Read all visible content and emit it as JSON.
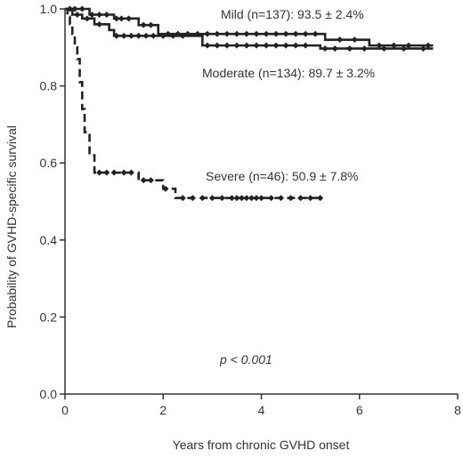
{
  "chart_data": {
    "type": "line",
    "title": "",
    "xlabel": "Years from chronic GVHD onset",
    "ylabel": "Probability of GVHD-specific survival",
    "xlim": [
      0,
      8
    ],
    "ylim": [
      0.0,
      1.0
    ],
    "x_ticks": [
      "0",
      "2",
      "4",
      "6",
      "8"
    ],
    "y_ticks": [
      "0.0",
      "0.2",
      "0.4",
      "0.6",
      "0.8",
      "1.0"
    ],
    "grid": false,
    "p_value": "p < 0.001",
    "series": [
      {
        "name": "Mild (n=137): 93.5 ± 2.4%",
        "line_style": "solid",
        "steps": [
          [
            0,
            1.0
          ],
          [
            0.5,
            0.985
          ],
          [
            1.0,
            0.975
          ],
          [
            1.5,
            0.958
          ],
          [
            1.9,
            0.935
          ],
          [
            5.2,
            0.935
          ],
          [
            5.3,
            0.92
          ],
          [
            6.1,
            0.92
          ],
          [
            6.2,
            0.905
          ],
          [
            7.5,
            0.905
          ]
        ],
        "censor_x": [
          0.1,
          0.2,
          0.35,
          0.55,
          0.7,
          0.85,
          1.05,
          1.15,
          1.3,
          1.6,
          1.75,
          2.1,
          2.3,
          2.5,
          2.7,
          2.9,
          3.1,
          3.3,
          3.5,
          3.7,
          3.9,
          4.1,
          4.3,
          4.5,
          4.7,
          4.9,
          5.1,
          5.6,
          5.9,
          6.4,
          6.7,
          7.0,
          7.4
        ]
      },
      {
        "name": "Moderate (n=134): 89.7 ± 3.2%",
        "line_style": "solid",
        "steps": [
          [
            0,
            1.0
          ],
          [
            0.15,
            0.985
          ],
          [
            0.35,
            0.975
          ],
          [
            0.6,
            0.96
          ],
          [
            0.9,
            0.945
          ],
          [
            1.0,
            0.93
          ],
          [
            2.6,
            0.93
          ],
          [
            2.8,
            0.905
          ],
          [
            5.1,
            0.905
          ],
          [
            5.2,
            0.897
          ],
          [
            7.5,
            0.897
          ]
        ],
        "censor_x": [
          0.25,
          0.45,
          0.7,
          1.05,
          1.2,
          1.35,
          1.5,
          1.65,
          1.8,
          2.0,
          2.2,
          2.4,
          2.9,
          3.1,
          3.3,
          3.5,
          3.7,
          3.9,
          4.1,
          4.3,
          4.5,
          4.7,
          4.9,
          5.3,
          5.5,
          5.8,
          6.1,
          6.5,
          6.9,
          7.3
        ]
      },
      {
        "name": "Severe (n=46): 50.9 ± 7.8%",
        "line_style": "dashed",
        "steps": [
          [
            0,
            1.0
          ],
          [
            0.05,
            0.98
          ],
          [
            0.1,
            0.96
          ],
          [
            0.15,
            0.935
          ],
          [
            0.2,
            0.9
          ],
          [
            0.25,
            0.87
          ],
          [
            0.3,
            0.81
          ],
          [
            0.35,
            0.74
          ],
          [
            0.4,
            0.68
          ],
          [
            0.5,
            0.62
          ],
          [
            0.6,
            0.575
          ],
          [
            1.45,
            0.575
          ],
          [
            1.5,
            0.555
          ],
          [
            1.9,
            0.555
          ],
          [
            2.0,
            0.533
          ],
          [
            2.2,
            0.533
          ],
          [
            2.25,
            0.509
          ],
          [
            5.2,
            0.509
          ]
        ],
        "censor_x": [
          0.7,
          0.85,
          1.0,
          1.2,
          1.35,
          1.6,
          1.75,
          2.05,
          2.4,
          2.6,
          2.8,
          3.0,
          3.2,
          3.4,
          3.5,
          3.6,
          3.7,
          3.8,
          3.9,
          4.0,
          4.2,
          4.4,
          4.6,
          4.8,
          5.0,
          5.2
        ]
      }
    ]
  }
}
